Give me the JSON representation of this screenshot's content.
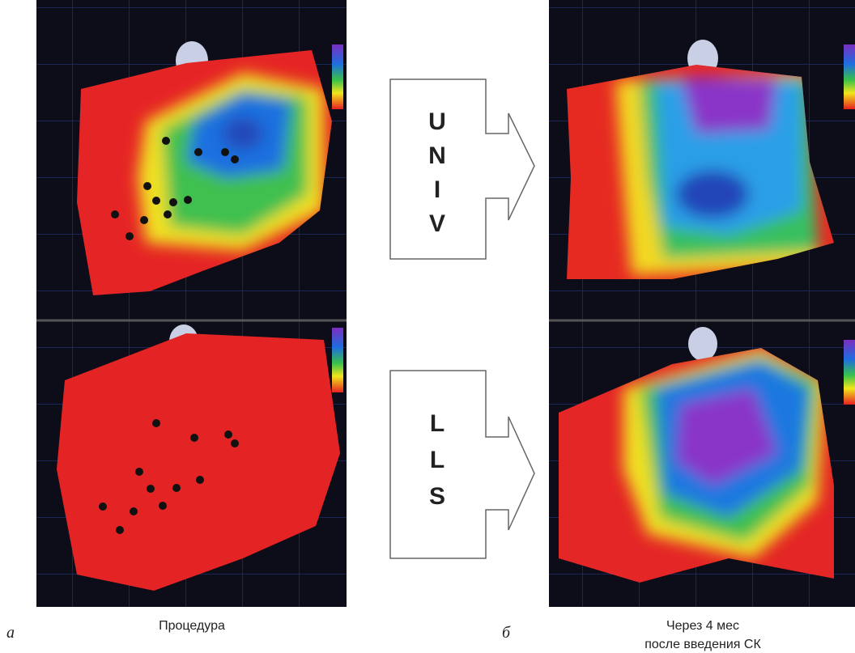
{
  "panels": {
    "a": {
      "label": "а",
      "caption": "Процедура"
    },
    "b": {
      "label": "б",
      "caption_lines": [
        "Через 4 мес",
        "после введения СК"
      ]
    }
  },
  "arrows": [
    {
      "letters": [
        "U",
        "N",
        "I",
        "V"
      ]
    },
    {
      "letters": [
        "L",
        "L",
        "S"
      ]
    }
  ]
}
